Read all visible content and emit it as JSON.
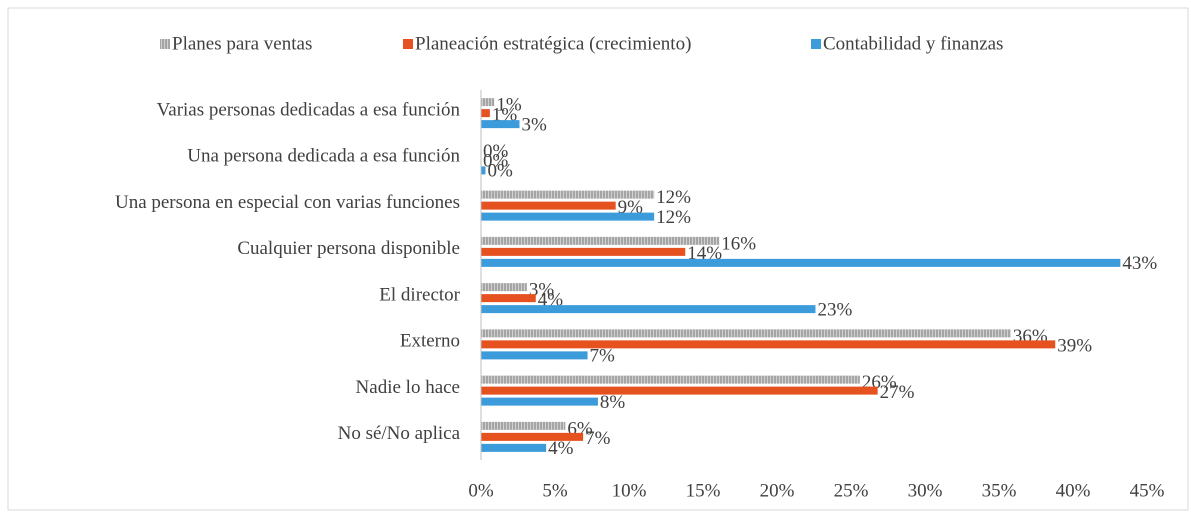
{
  "chart_data": {
    "type": "hbar",
    "categories": [
      "Varias personas dedicadas a esa función",
      "Una persona dedicada a esa función",
      "Una persona en especial con varias funciones",
      "Cualquier persona disponible",
      "El director",
      "Externo",
      "Nadie lo hace",
      "No sé/No aplica"
    ],
    "series": [
      {
        "name": "Planes para ventas",
        "color": "#a5a5a5",
        "pattern": "hatched",
        "values": [
          0.9,
          0,
          11.7,
          16.1,
          3.1,
          35.8,
          25.6,
          5.7
        ],
        "value_labels": [
          "1%",
          "0%",
          "12%",
          "16%",
          "3%",
          "36%",
          "26%",
          "6%"
        ]
      },
      {
        "name": "Planeación estratégica (crecimiento)",
        "color": "#e5511f",
        "values": [
          0.6,
          0,
          9.1,
          13.8,
          3.7,
          38.8,
          26.8,
          6.9
        ],
        "value_labels": [
          "1%",
          "0%",
          "9%",
          "14%",
          "4%",
          "39%",
          "27%",
          "7%"
        ]
      },
      {
        "name": "Contabilidad y finanzas",
        "color": "#3c9bdb",
        "values": [
          2.6,
          0.3,
          11.7,
          43.2,
          22.6,
          7.2,
          7.9,
          4.4
        ],
        "value_labels": [
          "3%",
          "0%",
          "12%",
          "43%",
          "23%",
          "7%",
          "8%",
          "4%"
        ]
      }
    ],
    "xlim": [
      0,
      45
    ],
    "xticks": [
      {
        "value": 0,
        "label": "0%"
      },
      {
        "value": 5,
        "label": "5%"
      },
      {
        "value": 10,
        "label": "10%"
      },
      {
        "value": 15,
        "label": "15%"
      },
      {
        "value": 20,
        "label": "20%"
      },
      {
        "value": 25,
        "label": "25%"
      },
      {
        "value": 30,
        "label": "30%"
      },
      {
        "value": 35,
        "label": "35%"
      },
      {
        "value": 40,
        "label": "40%"
      },
      {
        "value": 45,
        "label": "45%"
      }
    ],
    "legend": "top"
  }
}
